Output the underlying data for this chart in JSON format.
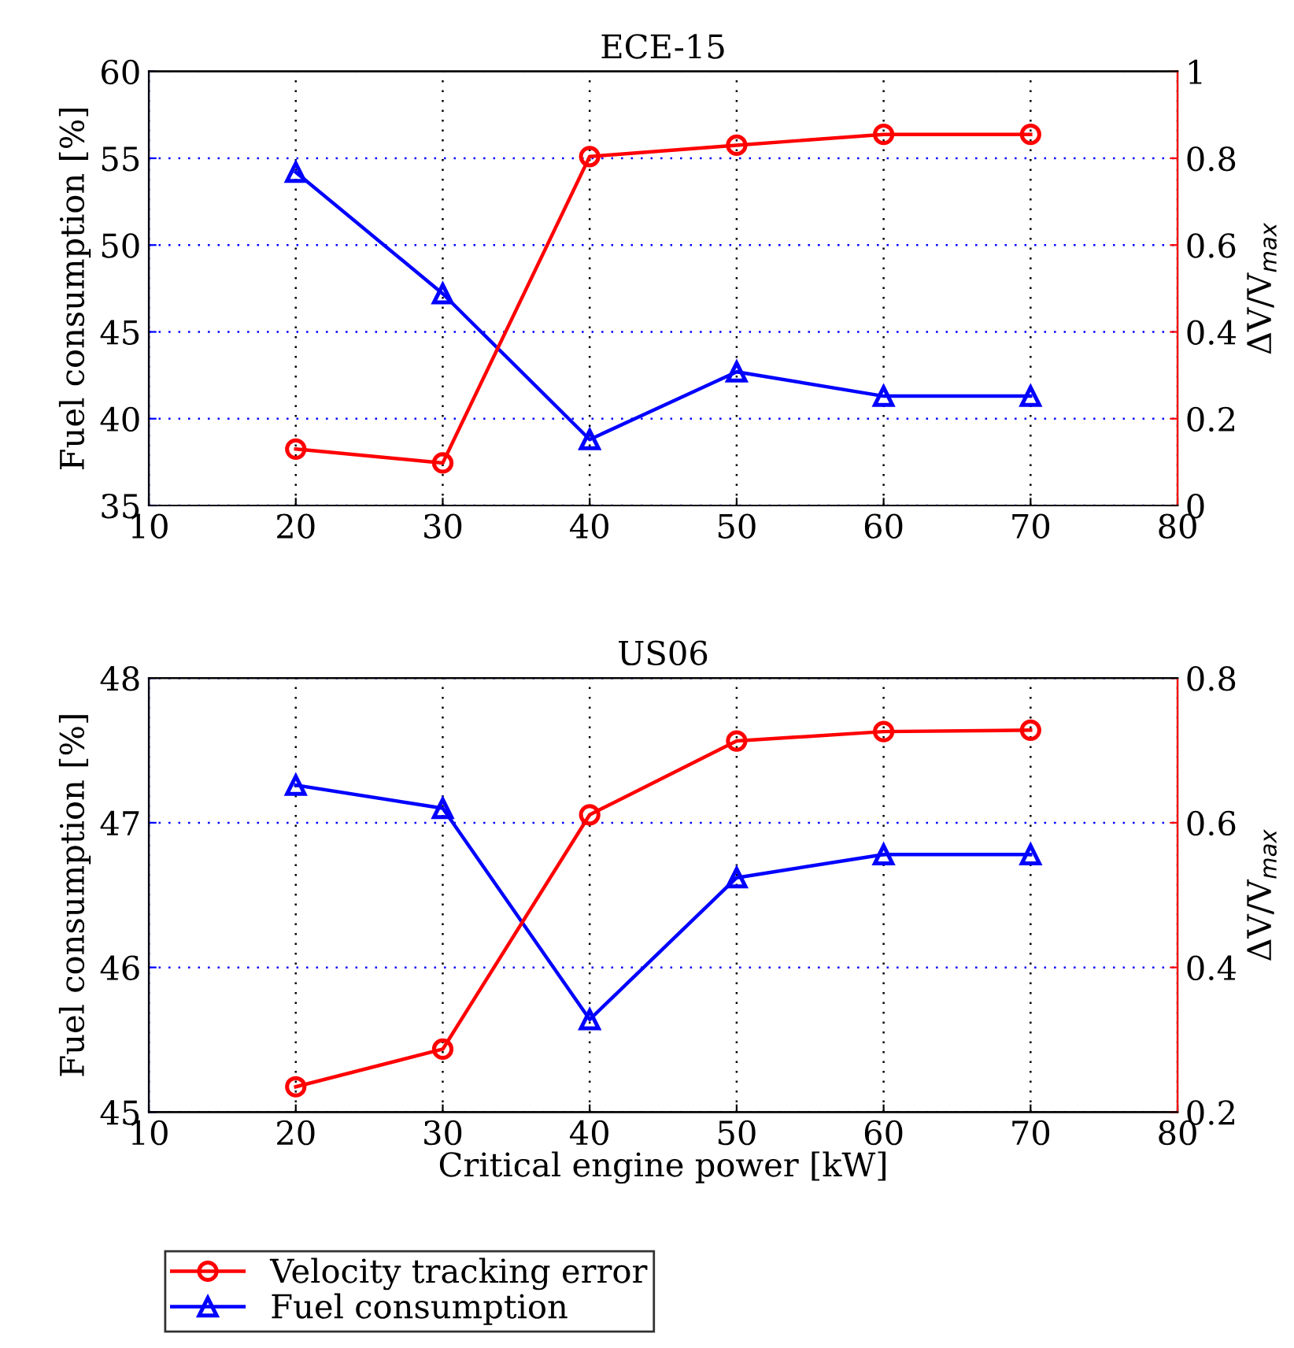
{
  "chart_data": [
    {
      "type": "line",
      "title": "ECE-15",
      "ylabel": "Fuel consumption [%]",
      "y2label": "ΔV/V$_{max}$",
      "x": [
        20,
        30,
        40,
        50,
        60,
        70
      ],
      "xlim": [
        10,
        80
      ],
      "xticks": [
        10,
        20,
        30,
        40,
        50,
        60,
        70,
        80
      ],
      "ylim": [
        35,
        60
      ],
      "yticks": [
        35,
        40,
        45,
        50,
        55,
        60
      ],
      "y2lim": [
        0,
        1
      ],
      "y2ticks": [
        0,
        0.2,
        0.4,
        0.6,
        0.8,
        1
      ],
      "grid": true,
      "legend": false,
      "series": [
        {
          "color": "#ff0000",
          "axis": "y2",
          "marker": "circle",
          "values": [
            0.13,
            0.098,
            0.804,
            0.83,
            0.855,
            0.855
          ]
        },
        {
          "color": "#0000ff",
          "axis": "y",
          "marker": "triangle",
          "values": [
            54.2,
            47.2,
            38.8,
            42.7,
            41.3,
            41.3
          ]
        }
      ]
    },
    {
      "type": "line",
      "title": "US06",
      "xlabel": "Critical engine power [kW]",
      "ylabel": "Fuel consumption [%]",
      "y2label": "ΔV/V$_{max}$",
      "x": [
        20,
        30,
        40,
        50,
        60,
        70
      ],
      "xlim": [
        10,
        80
      ],
      "xticks": [
        10,
        20,
        30,
        40,
        50,
        60,
        70,
        80
      ],
      "ylim": [
        45,
        48
      ],
      "yticks": [
        45,
        46,
        47,
        48
      ],
      "y2lim": [
        0.2,
        0.8
      ],
      "y2ticks": [
        0.2,
        0.4,
        0.6,
        0.8
      ],
      "grid": true,
      "legend": "bottom",
      "series": [
        {
          "name": "Velocity tracking error",
          "color": "#ff0000",
          "axis": "y2",
          "marker": "circle",
          "values": [
            0.235,
            0.287,
            0.611,
            0.713,
            0.726,
            0.728
          ]
        },
        {
          "name": "Fuel consumption",
          "color": "#0000ff",
          "axis": "y",
          "marker": "triangle",
          "values": [
            47.26,
            47.1,
            45.64,
            46.62,
            46.78,
            46.78
          ]
        }
      ]
    }
  ]
}
